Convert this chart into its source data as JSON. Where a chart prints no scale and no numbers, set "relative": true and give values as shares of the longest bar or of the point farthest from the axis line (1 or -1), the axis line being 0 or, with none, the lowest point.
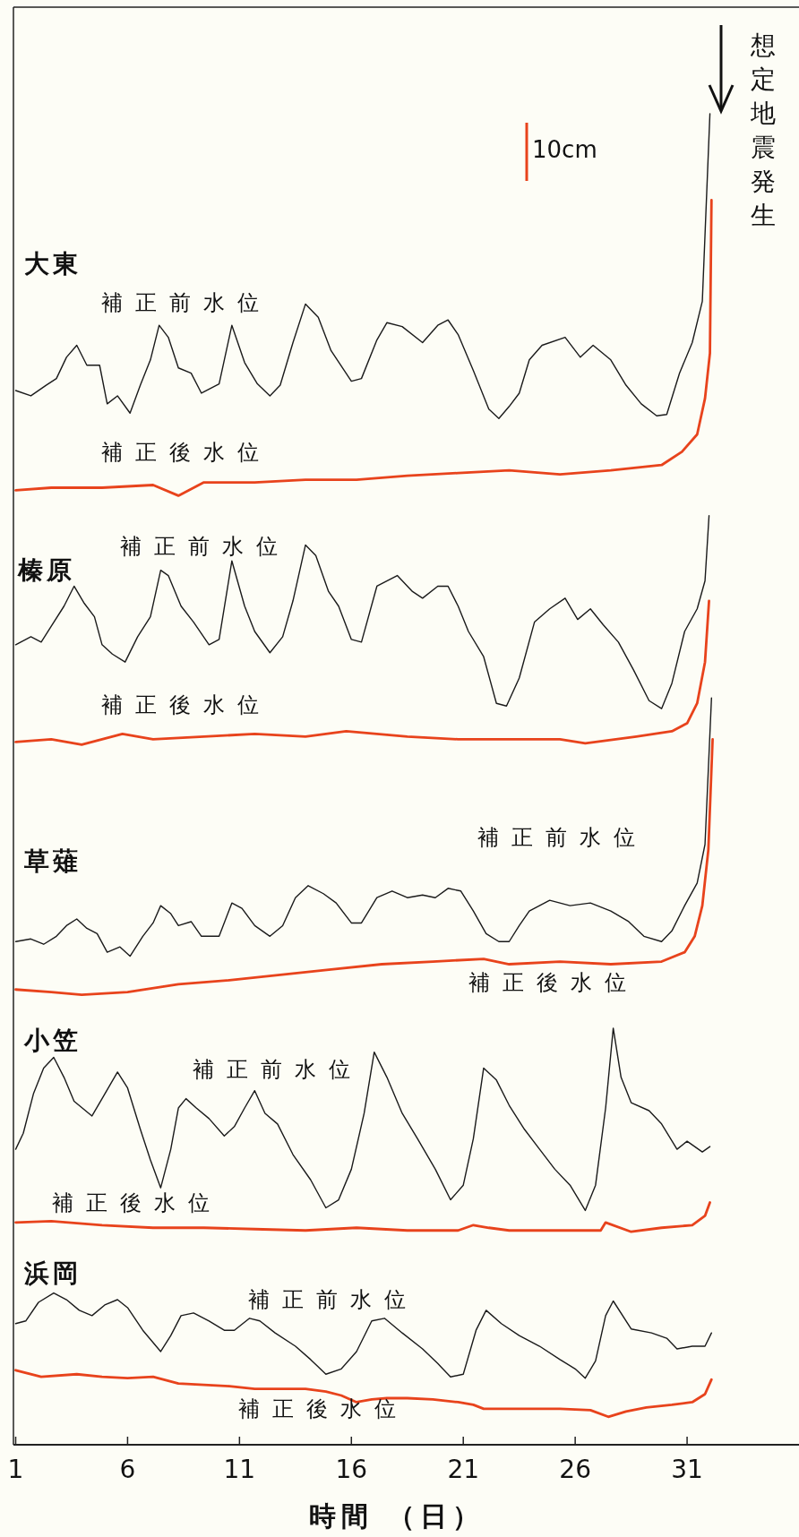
{
  "chart_data": {
    "type": "line",
    "relative": true,
    "xlabel": "時間 （日）",
    "xlim": [
      0.9,
      36
    ],
    "xticks": [
      1,
      6,
      11,
      16,
      21,
      26,
      31
    ],
    "annotations": [
      "大東",
      "榛原",
      "草薙",
      "小笠",
      "浜岡",
      "10cm",
      "想定地震発生"
    ],
    "series": [
      {
        "name": "補正前水位",
        "color": "#1a1a1a",
        "x": [
          1,
          1.68,
          2.36,
          2.82,
          3.27,
          3.73,
          4.18,
          4.75,
          5.09,
          5.55,
          6.11,
          6.57,
          7.02,
          7.41,
          7.82,
          8.27,
          8.84,
          9.3,
          10.09,
          10.66,
          11.23,
          11.8,
          12.36,
          12.82,
          13.39,
          13.95,
          14.52,
          15.09,
          16,
          16.45,
          17.14,
          17.59,
          18.27,
          19.18,
          19.86,
          20.32,
          20.77,
          21.45,
          22.14,
          22.59,
          23.05,
          23.5,
          23.95,
          24.52,
          25.55,
          26.23,
          26.8,
          27.59,
          28.27,
          28.95,
          29.64,
          30.09,
          30.66,
          31.23,
          31.68,
          32.02
        ],
        "values": [
          0.792,
          0.788,
          0.796,
          0.801,
          0.817,
          0.826,
          0.811,
          0.811,
          0.782,
          0.788,
          0.775,
          0.796,
          0.815,
          0.841,
          0.832,
          0.809,
          0.805,
          0.79,
          0.797,
          0.841,
          0.813,
          0.797,
          0.788,
          0.796,
          0.828,
          0.857,
          0.847,
          0.822,
          0.799,
          0.801,
          0.83,
          0.843,
          0.84,
          0.828,
          0.841,
          0.845,
          0.834,
          0.807,
          0.778,
          0.771,
          0.78,
          0.79,
          0.815,
          0.826,
          0.832,
          0.817,
          0.826,
          0.815,
          0.796,
          0.782,
          0.773,
          0.774,
          0.805,
          0.828,
          0.859,
          1.0
        ]
      },
      {
        "name": "補正後水位",
        "color": "#e8431c",
        "x": [
          1,
          2.59,
          4.86,
          7.14,
          8.27,
          9.41,
          11.68,
          13.95,
          16.23,
          18.5,
          20.77,
          23.05,
          25.32,
          27.59,
          29.86,
          30.77,
          31.45,
          31.8,
          32.02,
          32.09
        ],
        "values": [
          0.717,
          0.719,
          0.719,
          0.721,
          0.713,
          0.723,
          0.723,
          0.725,
          0.725,
          0.728,
          0.73,
          0.732,
          0.729,
          0.732,
          0.736,
          0.746,
          0.759,
          0.786,
          0.82,
          0.935
        ]
      },
      {
        "name": "補正前水位",
        "color": "#1a1a1a",
        "x": [
          1,
          1.68,
          2.14,
          2.59,
          3.16,
          3.61,
          4.07,
          4.52,
          4.86,
          5.32,
          5.89,
          6.45,
          7.02,
          7.48,
          7.82,
          8.39,
          8.95,
          9.64,
          10.09,
          10.66,
          11.23,
          11.68,
          12.36,
          12.93,
          13.39,
          13.95,
          14.41,
          14.98,
          15.43,
          16,
          16.45,
          17.14,
          18.05,
          18.73,
          19.18,
          19.86,
          20.32,
          20.77,
          21.23,
          21.91,
          22.48,
          22.93,
          23.5,
          24.18,
          24.86,
          25.55,
          26.11,
          26.68,
          27.25,
          27.93,
          28.61,
          29.3,
          29.86,
          30.32,
          30.89,
          31.45,
          31.8,
          31.98
        ],
        "values": [
          0.601,
          0.607,
          0.603,
          0.615,
          0.63,
          0.645,
          0.632,
          0.622,
          0.601,
          0.594,
          0.588,
          0.607,
          0.622,
          0.657,
          0.653,
          0.63,
          0.618,
          0.601,
          0.605,
          0.664,
          0.63,
          0.611,
          0.595,
          0.607,
          0.634,
          0.676,
          0.668,
          0.641,
          0.63,
          0.605,
          0.603,
          0.645,
          0.653,
          0.641,
          0.636,
          0.645,
          0.645,
          0.63,
          0.611,
          0.592,
          0.557,
          0.555,
          0.576,
          0.618,
          0.628,
          0.636,
          0.62,
          0.628,
          0.616,
          0.603,
          0.582,
          0.559,
          0.553,
          0.572,
          0.611,
          0.628,
          0.649,
          0.698
        ]
      },
      {
        "name": "補正後水位",
        "color": "#e8431c",
        "x": [
          1,
          2.59,
          3.95,
          5.77,
          7.14,
          9.41,
          11.68,
          13.95,
          15.77,
          18.5,
          20.77,
          23.05,
          25.32,
          26.45,
          28.73,
          30.32,
          31,
          31.45,
          31.8,
          31.98
        ],
        "values": [
          0.528,
          0.53,
          0.526,
          0.534,
          0.53,
          0.532,
          0.534,
          0.532,
          0.536,
          0.532,
          0.53,
          0.53,
          0.53,
          0.527,
          0.532,
          0.536,
          0.542,
          0.557,
          0.588,
          0.634
        ]
      },
      {
        "name": "補正前水位",
        "color": "#1a1a1a",
        "x": [
          1,
          1.68,
          2.25,
          2.82,
          3.27,
          3.73,
          4.18,
          4.64,
          5.09,
          5.66,
          6.11,
          6.68,
          7.14,
          7.48,
          7.93,
          8.27,
          8.84,
          9.3,
          10.09,
          10.66,
          11.11,
          11.68,
          12.36,
          12.93,
          13.5,
          14.07,
          14.75,
          15.32,
          16,
          16.45,
          17.14,
          17.82,
          18.5,
          19.18,
          19.75,
          20.32,
          20.89,
          21.45,
          22.02,
          22.59,
          23.05,
          23.5,
          23.95,
          24.86,
          25.77,
          26.68,
          27.59,
          28.39,
          29.07,
          29.86,
          30.32,
          30.89,
          31.45,
          31.8,
          32.09
        ],
        "values": [
          0.378,
          0.38,
          0.376,
          0.382,
          0.39,
          0.395,
          0.388,
          0.384,
          0.37,
          0.374,
          0.367,
          0.382,
          0.392,
          0.405,
          0.399,
          0.39,
          0.393,
          0.382,
          0.382,
          0.407,
          0.403,
          0.39,
          0.382,
          0.39,
          0.411,
          0.42,
          0.414,
          0.407,
          0.392,
          0.392,
          0.411,
          0.416,
          0.411,
          0.413,
          0.411,
          0.418,
          0.416,
          0.401,
          0.384,
          0.378,
          0.378,
          0.39,
          0.401,
          0.409,
          0.405,
          0.407,
          0.401,
          0.393,
          0.382,
          0.378,
          0.386,
          0.405,
          0.422,
          0.451,
          0.561
        ]
      },
      {
        "name": "補正後水位",
        "color": "#e8431c",
        "x": [
          1,
          2.59,
          3.95,
          6,
          8.27,
          10.55,
          12.82,
          15.09,
          17.36,
          19.64,
          21.91,
          23.05,
          25.32,
          27.59,
          29.86,
          30.89,
          31.34,
          31.68,
          31.95,
          32.14
        ],
        "values": [
          0.342,
          0.34,
          0.338,
          0.34,
          0.346,
          0.349,
          0.353,
          0.357,
          0.361,
          0.363,
          0.365,
          0.361,
          0.363,
          0.361,
          0.363,
          0.37,
          0.382,
          0.405,
          0.447,
          0.53
        ]
      },
      {
        "name": "補正前水位",
        "color": "#1a1a1a",
        "x": [
          1,
          1.34,
          1.8,
          2.25,
          2.7,
          3.16,
          3.61,
          4.41,
          4.86,
          5.55,
          6,
          6.57,
          7.02,
          7.48,
          7.93,
          8.27,
          8.61,
          9.07,
          9.64,
          10.32,
          10.77,
          11.23,
          11.68,
          12.14,
          12.7,
          13.39,
          14.18,
          14.86,
          15.43,
          16,
          16.57,
          17.02,
          17.59,
          18.27,
          18.95,
          19.75,
          20.43,
          21,
          21.45,
          21.91,
          22.48,
          23.05,
          23.73,
          24.41,
          25.09,
          25.77,
          26.45,
          26.91,
          27.36,
          27.7,
          28.05,
          28.5,
          29.3,
          29.86,
          30.55,
          31,
          31.68,
          32.02
        ],
        "values": [
          0.222,
          0.234,
          0.264,
          0.283,
          0.291,
          0.276,
          0.258,
          0.247,
          0.26,
          0.28,
          0.268,
          0.237,
          0.214,
          0.193,
          0.222,
          0.253,
          0.26,
          0.253,
          0.245,
          0.232,
          0.239,
          0.253,
          0.266,
          0.249,
          0.241,
          0.218,
          0.199,
          0.178,
          0.184,
          0.207,
          0.249,
          0.295,
          0.276,
          0.249,
          0.23,
          0.207,
          0.184,
          0.195,
          0.23,
          0.283,
          0.274,
          0.255,
          0.237,
          0.222,
          0.207,
          0.195,
          0.176,
          0.195,
          0.253,
          0.313,
          0.276,
          0.257,
          0.251,
          0.241,
          0.222,
          0.228,
          0.22,
          0.224
        ]
      },
      {
        "name": "補正後水位",
        "color": "#e8431c",
        "x": [
          1,
          2.59,
          4.86,
          7.14,
          9.41,
          11.68,
          13.95,
          16.23,
          18.5,
          20.77,
          21.45,
          22.14,
          23.05,
          25.32,
          27.14,
          27.36,
          28.5,
          29.86,
          31.23,
          31.8,
          32.02
        ],
        "values": [
          0.167,
          0.168,
          0.165,
          0.163,
          0.163,
          0.162,
          0.161,
          0.163,
          0.161,
          0.161,
          0.165,
          0.163,
          0.161,
          0.161,
          0.161,
          0.167,
          0.16,
          0.163,
          0.165,
          0.172,
          0.182
        ]
      },
      {
        "name": "補正前水位",
        "color": "#1a1a1a",
        "x": [
          1,
          1.45,
          2.02,
          2.7,
          3.27,
          3.84,
          4.41,
          4.98,
          5.55,
          6,
          6.68,
          7.48,
          7.93,
          8.39,
          8.95,
          9.64,
          10.32,
          10.77,
          11.45,
          11.91,
          12.59,
          13.5,
          14.18,
          14.86,
          15.55,
          16.23,
          16.91,
          17.48,
          18.27,
          19.18,
          19.86,
          20.43,
          21,
          21.57,
          22.02,
          22.7,
          23.5,
          24.41,
          25.32,
          26,
          26.45,
          26.91,
          27.36,
          27.7,
          28.5,
          29.41,
          30.09,
          30.55,
          31.23,
          31.8,
          32.09
        ],
        "values": [
          0.091,
          0.093,
          0.107,
          0.114,
          0.109,
          0.101,
          0.097,
          0.105,
          0.109,
          0.103,
          0.086,
          0.07,
          0.082,
          0.097,
          0.099,
          0.093,
          0.086,
          0.086,
          0.095,
          0.093,
          0.084,
          0.074,
          0.064,
          0.053,
          0.057,
          0.07,
          0.093,
          0.095,
          0.084,
          0.072,
          0.061,
          0.051,
          0.053,
          0.086,
          0.101,
          0.091,
          0.082,
          0.074,
          0.064,
          0.057,
          0.05,
          0.063,
          0.097,
          0.108,
          0.087,
          0.084,
          0.08,
          0.072,
          0.074,
          0.074,
          0.084
        ]
      },
      {
        "name": "補正後水位",
        "color": "#e8431c",
        "x": [
          1,
          2.14,
          3.73,
          4.86,
          6,
          7.14,
          8.27,
          9.41,
          10.55,
          11.68,
          12.82,
          13.95,
          14.86,
          15.55,
          16.23,
          16.91,
          17.59,
          18.5,
          19.64,
          20.77,
          21.45,
          21.91,
          23.05,
          24.18,
          25.32,
          26.68,
          27.48,
          28.27,
          29.18,
          30.32,
          31.23,
          31.8,
          32.09
        ],
        "values": [
          0.056,
          0.051,
          0.053,
          0.051,
          0.05,
          0.051,
          0.046,
          0.045,
          0.044,
          0.042,
          0.042,
          0.042,
          0.04,
          0.037,
          0.032,
          0.034,
          0.035,
          0.035,
          0.034,
          0.032,
          0.03,
          0.027,
          0.027,
          0.027,
          0.027,
          0.026,
          0.021,
          0.025,
          0.028,
          0.03,
          0.032,
          0.038,
          0.049
        ]
      }
    ]
  }
}
